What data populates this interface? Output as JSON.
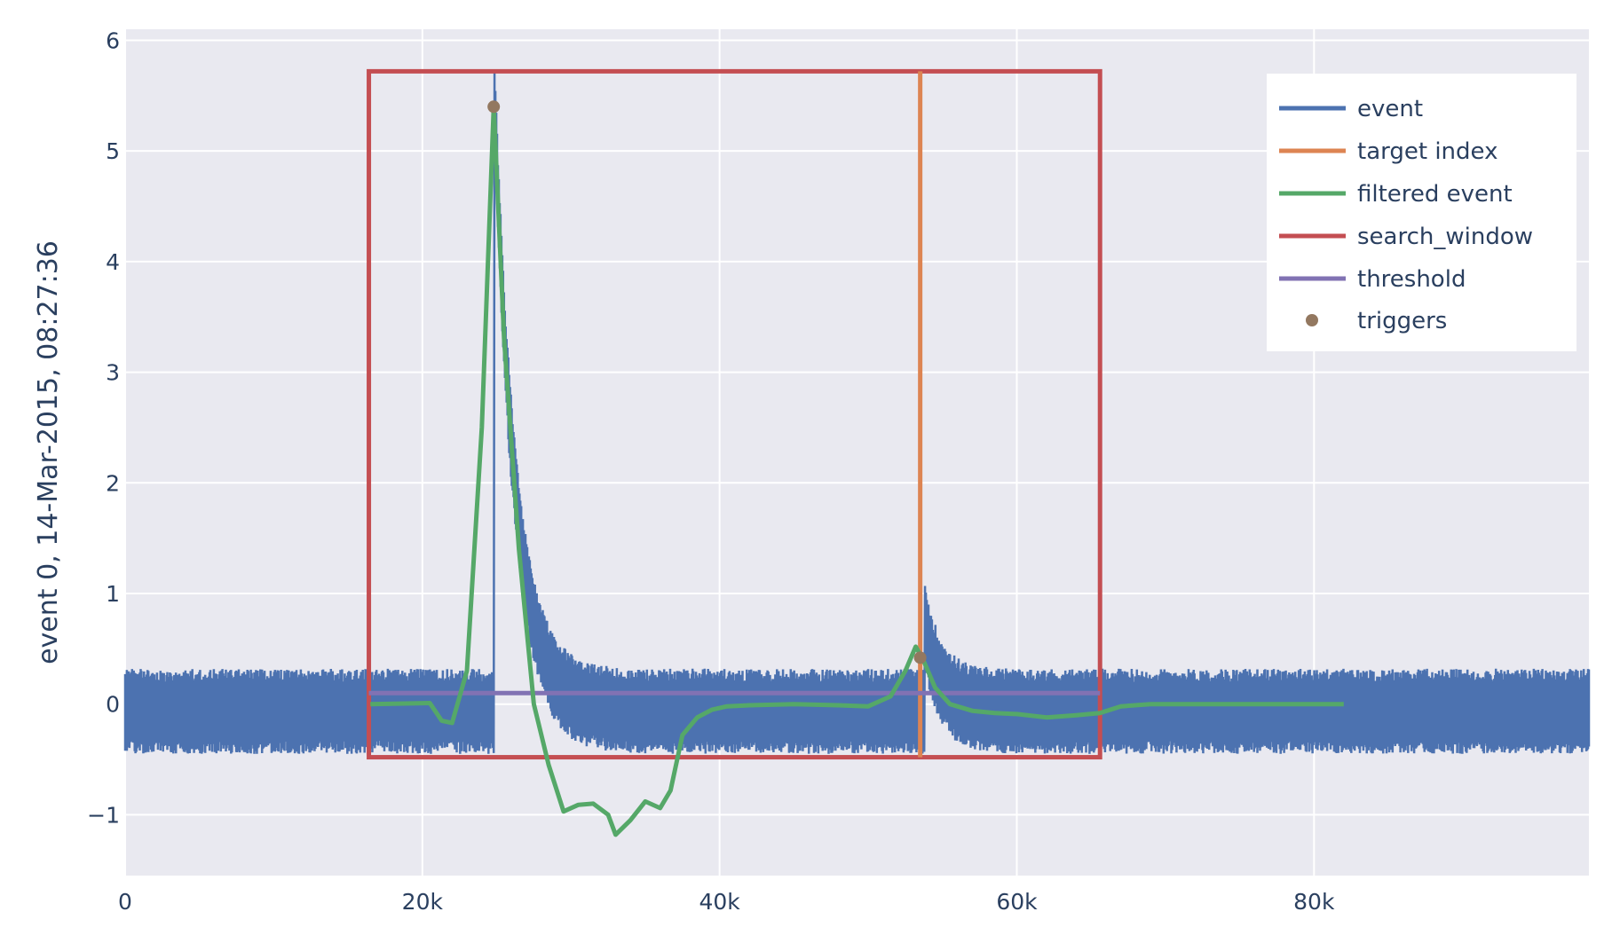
{
  "chart_data": {
    "type": "line",
    "xlabel": "",
    "ylabel": "event 0, 14-Mar-2015, 08:27:36",
    "xlim": [
      0,
      98500
    ],
    "ylim": [
      -1.55,
      6.1
    ],
    "x_ticks": [
      {
        "value": 0,
        "label": "0"
      },
      {
        "value": 20000,
        "label": "20k"
      },
      {
        "value": 40000,
        "label": "40k"
      },
      {
        "value": 60000,
        "label": "60k"
      },
      {
        "value": 80000,
        "label": "80k"
      }
    ],
    "y_ticks": [
      {
        "value": -1,
        "label": "−1"
      },
      {
        "value": 0,
        "label": "0"
      },
      {
        "value": 1,
        "label": "1"
      },
      {
        "value": 2,
        "label": "2"
      },
      {
        "value": 3,
        "label": "3"
      },
      {
        "value": 4,
        "label": "4"
      },
      {
        "value": 5,
        "label": "5"
      },
      {
        "value": 6,
        "label": "6"
      }
    ],
    "grid": true,
    "legend_position": "top-right",
    "colors": {
      "event": "#4c72b0",
      "target_index": "#dd8452",
      "filtered_event": "#55a868",
      "search_window": "#c44e52",
      "threshold": "#8172b3",
      "triggers": "#937860",
      "plot_background": "#e9e9f0"
    },
    "series": [
      {
        "name": "event",
        "kind": "noisy-line",
        "description_values": {
          "x_range": [
            0,
            98500
          ],
          "baseline_band": [
            -0.33,
            0.2
          ],
          "pulses": [
            {
              "x": 24800,
              "peak": 5.72
            },
            {
              "x": 53800,
              "peak": 0.77
            }
          ]
        }
      },
      {
        "name": "target index",
        "kind": "vertical-line",
        "x": 53500,
        "y_range": [
          -0.48,
          5.72
        ]
      },
      {
        "name": "filtered event",
        "kind": "line",
        "x": [
          16500,
          20500,
          21300,
          22000,
          23000,
          24000,
          24800,
          25500,
          26500,
          27500,
          28500,
          29500,
          30500,
          31500,
          32500,
          33000,
          34000,
          35000,
          36000,
          36700,
          37500,
          38500,
          39500,
          40500,
          42000,
          45000,
          48000,
          50000,
          51500,
          52500,
          53200,
          53700,
          54500,
          55500,
          57000,
          58500,
          60000,
          62000,
          64000,
          65600,
          67000,
          69000,
          72000,
          76000,
          80000,
          82000
        ],
        "y": [
          0,
          0.01,
          -0.15,
          -0.17,
          0.3,
          2.5,
          5.4,
          3.3,
          1.4,
          0,
          -0.55,
          -0.97,
          -0.91,
          -0.9,
          -1.0,
          -1.18,
          -1.05,
          -0.88,
          -0.94,
          -0.78,
          -0.28,
          -0.12,
          -0.05,
          -0.02,
          -0.01,
          0,
          -0.01,
          -0.02,
          0.07,
          0.3,
          0.52,
          0.4,
          0.15,
          0.0,
          -0.06,
          -0.08,
          -0.09,
          -0.12,
          -0.1,
          -0.08,
          -0.02,
          0.0,
          0.0,
          0.0,
          0.0,
          0.0
        ]
      },
      {
        "name": "search_window",
        "kind": "rectangle",
        "x_range": [
          16400,
          65600
        ],
        "y_range": [
          -0.48,
          5.72
        ]
      },
      {
        "name": "threshold",
        "kind": "line",
        "x": [
          16400,
          65600
        ],
        "y": [
          0.1,
          0.1
        ]
      },
      {
        "name": "triggers",
        "kind": "markers",
        "x": [
          24800,
          53500
        ],
        "y": [
          5.4,
          0.42
        ]
      }
    ]
  }
}
